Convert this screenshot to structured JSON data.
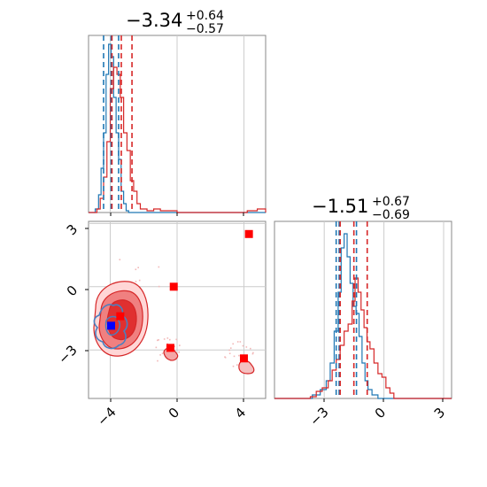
{
  "chart_data": {
    "type": "corner",
    "panels": [
      {
        "id": "hist-param1",
        "type": "histogram",
        "title": {
          "main": "−3.34",
          "plus": "+0.64",
          "minus": "−0.57"
        },
        "xlim": [
          -5.3,
          5.3
        ],
        "grid": true,
        "quantile_lines": [
          {
            "color": "#1f77b4",
            "x": [
              -4.4,
              -3.95,
              -3.5
            ]
          },
          {
            "color": "#d62728",
            "x": [
              -3.9,
              -3.34,
              -2.7
            ]
          }
        ],
        "series": [
          {
            "color": "#1f77b4",
            "bins": [
              [
                -5.3,
                0
              ],
              [
                -4.9,
                0.02
              ],
              [
                -4.7,
                0.1
              ],
              [
                -4.55,
                0.25
              ],
              [
                -4.4,
                0.45
              ],
              [
                -4.25,
                0.78
              ],
              [
                -4.1,
                0.95
              ],
              [
                -3.95,
                0.88
              ],
              [
                -3.8,
                0.65
              ],
              [
                -3.65,
                0.45
              ],
              [
                -3.5,
                0.3
              ],
              [
                -3.35,
                0.12
              ],
              [
                -3.2,
                0.05
              ],
              [
                -3.05,
                0.01
              ],
              [
                -2.9,
                0
              ],
              [
                5.3,
                0
              ]
            ]
          },
          {
            "color": "#d62728",
            "bins": [
              [
                -5.3,
                0
              ],
              [
                -4.8,
                0.02
              ],
              [
                -4.6,
                0.08
              ],
              [
                -4.4,
                0.2
              ],
              [
                -4.2,
                0.4
              ],
              [
                -4.0,
                0.7
              ],
              [
                -3.8,
                0.82
              ],
              [
                -3.6,
                0.78
              ],
              [
                -3.4,
                0.65
              ],
              [
                -3.2,
                0.45
              ],
              [
                -3.0,
                0.35
              ],
              [
                -2.8,
                0.18
              ],
              [
                -2.6,
                0.12
              ],
              [
                -2.4,
                0.05
              ],
              [
                -2.2,
                0.02
              ],
              [
                -1.8,
                0.01
              ],
              [
                -1.4,
                0.02
              ],
              [
                -1.0,
                0.01
              ],
              [
                -0.3,
                0.01
              ],
              [
                0,
                0
              ],
              [
                4.2,
                0.01
              ],
              [
                4.8,
                0.02
              ],
              [
                5.3,
                0
              ]
            ]
          }
        ]
      },
      {
        "id": "hist-param2",
        "type": "histogram",
        "title": {
          "main": "−1.51",
          "plus": "+0.67",
          "minus": "−0.69"
        },
        "xlim": [
          -5.5,
          3.4
        ],
        "grid": true,
        "quantile_lines": [
          {
            "color": "#1f77b4",
            "x": [
              -2.4,
              -1.38,
              -2.25
            ]
          },
          {
            "color": "#d62728",
            "x": [
              -2.2,
              -1.51,
              -0.84
            ]
          }
        ],
        "series": [
          {
            "color": "#1f77b4",
            "bins": [
              [
                -5.5,
                0
              ],
              [
                -3.6,
                0.02
              ],
              [
                -3.2,
                0.05
              ],
              [
                -2.9,
                0.1
              ],
              [
                -2.7,
                0.2
              ],
              [
                -2.5,
                0.38
              ],
              [
                -2.3,
                0.6
              ],
              [
                -2.15,
                0.85
              ],
              [
                -2.0,
                0.93
              ],
              [
                -1.85,
                0.8
              ],
              [
                -1.7,
                0.65
              ],
              [
                -1.55,
                0.52
              ],
              [
                -1.4,
                0.48
              ],
              [
                -1.25,
                0.35
              ],
              [
                -1.1,
                0.2
              ],
              [
                -0.95,
                0.1
              ],
              [
                -0.8,
                0.05
              ],
              [
                -0.6,
                0.02
              ],
              [
                -0.3,
                0
              ],
              [
                3.4,
                0
              ]
            ]
          },
          {
            "color": "#d62728",
            "bins": [
              [
                -5.5,
                0
              ],
              [
                -3.7,
                0.01
              ],
              [
                -3.4,
                0.04
              ],
              [
                -3.1,
                0.06
              ],
              [
                -2.8,
                0.1
              ],
              [
                -2.6,
                0.16
              ],
              [
                -2.4,
                0.22
              ],
              [
                -2.2,
                0.3
              ],
              [
                -2.0,
                0.38
              ],
              [
                -1.8,
                0.42
              ],
              [
                -1.6,
                0.55
              ],
              [
                -1.45,
                0.68
              ],
              [
                -1.3,
                0.6
              ],
              [
                -1.15,
                0.5
              ],
              [
                -1.0,
                0.4
              ],
              [
                -0.85,
                0.32
              ],
              [
                -0.7,
                0.28
              ],
              [
                -0.5,
                0.2
              ],
              [
                -0.3,
                0.14
              ],
              [
                -0.1,
                0.12
              ],
              [
                0.1,
                0.06
              ],
              [
                0.3,
                0.03
              ],
              [
                0.5,
                0
              ],
              [
                3.4,
                0
              ]
            ]
          }
        ]
      },
      {
        "id": "scatter-2d",
        "type": "2d-density",
        "xlim": [
          -5.3,
          5.3
        ],
        "ylim": [
          -5.3,
          3.1
        ],
        "xticks": [
          -4,
          0,
          4
        ],
        "yticks": [
          -3,
          0,
          3
        ],
        "grid": true,
        "markers": [
          {
            "color": "#ff0000",
            "shape": "square",
            "points": [
              [
                4.3,
                2.5
              ],
              [
                -0.2,
                0.0
              ],
              [
                -3.4,
                -1.4
              ],
              [
                -0.4,
                -2.9
              ],
              [
                4.0,
                -3.4
              ]
            ]
          },
          {
            "color": "#0000ff",
            "shape": "square",
            "points": [
              [
                -3.95,
                -1.85
              ]
            ]
          }
        ],
        "contours": [
          {
            "color": "#d62728",
            "fill": "#ffd6d6",
            "level": "outer"
          },
          {
            "color": "#d62728",
            "fill": "#f08080",
            "level": "middle"
          },
          {
            "color": "#d62728",
            "fill": "#e03030",
            "level": "inner"
          },
          {
            "color": "#4a7fc0",
            "fill": "none",
            "level": "blue"
          }
        ]
      }
    ],
    "bottom_xticks": [
      {
        "panel": "scatter-2d",
        "ticks": [
          "−4",
          "0",
          "4"
        ]
      },
      {
        "panel": "hist-param2",
        "ticks": [
          "−3",
          "0",
          "3"
        ]
      }
    ],
    "left_yticks": [
      "3",
      "0",
      "−3"
    ]
  }
}
